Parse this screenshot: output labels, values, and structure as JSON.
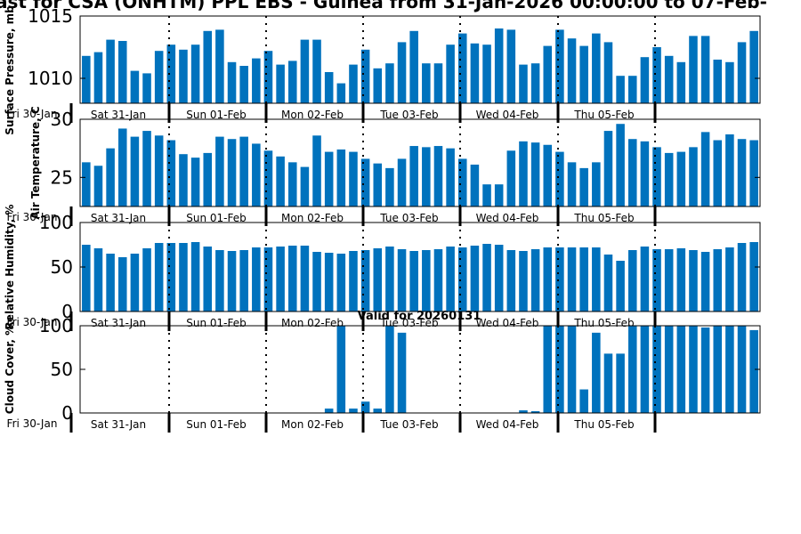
{
  "title": "ast for CSA (ONHTM) PPL EBS  - Guinea from 31-Jan-2026 00:00:00 to 07-Feb-",
  "valid_label": "Valid for 20260131",
  "day_labels": [
    "Sat 31-Jan",
    "Sun 01-Feb",
    "Mon 02-Feb",
    "Tue 03-Feb",
    "Wed 04-Feb",
    "Thu 05-Feb"
  ],
  "start_label": "Fri 30-Jan",
  "bar_color": "#0072bd",
  "chart_data": [
    {
      "type": "bar",
      "ylabel": "Surface Pressure, mb",
      "ylim": [
        1008,
        1015
      ],
      "yticks": [
        1010,
        1015
      ],
      "values": [
        1011.8,
        1012.1,
        1013.1,
        1013.0,
        1010.6,
        1010.4,
        1012.2,
        1012.7,
        1012.3,
        1012.7,
        1013.8,
        1013.9,
        1011.3,
        1011.0,
        1011.6,
        1012.2,
        1011.1,
        1011.4,
        1013.1,
        1013.1,
        1010.5,
        1009.6,
        1011.1,
        1012.3,
        1010.8,
        1011.2,
        1012.9,
        1013.8,
        1011.2,
        1011.2,
        1012.7,
        1013.6,
        1012.8,
        1012.7,
        1014.0,
        1013.9,
        1011.1,
        1011.2,
        1012.6,
        1013.9,
        1013.2,
        1012.6,
        1013.6,
        1012.9,
        1010.2,
        1010.2,
        1011.7,
        1012.5,
        1011.8,
        1011.3,
        1013.4,
        1013.4,
        1011.5,
        1011.3,
        1012.9,
        1013.8
      ]
    },
    {
      "type": "bar",
      "ylabel": "Air Temperature, C",
      "ylim": [
        22.5,
        30
      ],
      "yticks": [
        25,
        30
      ],
      "values": [
        26.3,
        26.0,
        27.5,
        29.2,
        28.5,
        29.0,
        28.6,
        28.2,
        27.0,
        26.7,
        27.1,
        28.5,
        28.3,
        28.5,
        27.9,
        27.3,
        26.8,
        26.3,
        25.9,
        28.6,
        27.2,
        27.4,
        27.2,
        26.6,
        26.2,
        25.8,
        26.6,
        27.7,
        27.6,
        27.7,
        27.5,
        26.6,
        26.1,
        24.4,
        24.4,
        27.3,
        28.1,
        28.0,
        27.8,
        27.2,
        26.3,
        25.8,
        26.3,
        29.0,
        29.6,
        28.3,
        28.1,
        27.6,
        27.1,
        27.2,
        27.6,
        28.9,
        28.2,
        28.7,
        28.3,
        28.2
      ]
    },
    {
      "type": "bar",
      "ylabel": "Relative Humidity, %",
      "ylim": [
        0,
        100
      ],
      "yticks": [
        0,
        50,
        100
      ],
      "values": [
        75,
        71,
        65,
        61,
        65,
        71,
        77,
        77,
        77,
        78,
        73,
        69,
        68,
        69,
        72,
        72,
        73,
        74,
        74,
        67,
        66,
        65,
        68,
        69,
        71,
        73,
        70,
        68,
        69,
        70,
        73,
        72,
        74,
        76,
        75,
        69,
        68,
        70,
        72,
        72,
        72,
        72,
        72,
        64,
        57,
        69,
        73,
        70,
        70,
        71,
        69,
        67,
        70,
        72,
        77,
        78
      ]
    },
    {
      "type": "bar",
      "ylabel": "Cloud Cover, %",
      "ylim": [
        0,
        100
      ],
      "yticks": [
        0,
        50,
        100
      ],
      "values": [
        0,
        0,
        0,
        0,
        0,
        0,
        0,
        0,
        0,
        0,
        0,
        0,
        0,
        0,
        0,
        0,
        0,
        0,
        0,
        0,
        5,
        100,
        5,
        13,
        5,
        100,
        92,
        0,
        0,
        0,
        0,
        0,
        0,
        0,
        0,
        0,
        3,
        2,
        100,
        100,
        100,
        27,
        92,
        68,
        68,
        100,
        100,
        100,
        100,
        100,
        100,
        98,
        100,
        100,
        100,
        95
      ]
    }
  ]
}
